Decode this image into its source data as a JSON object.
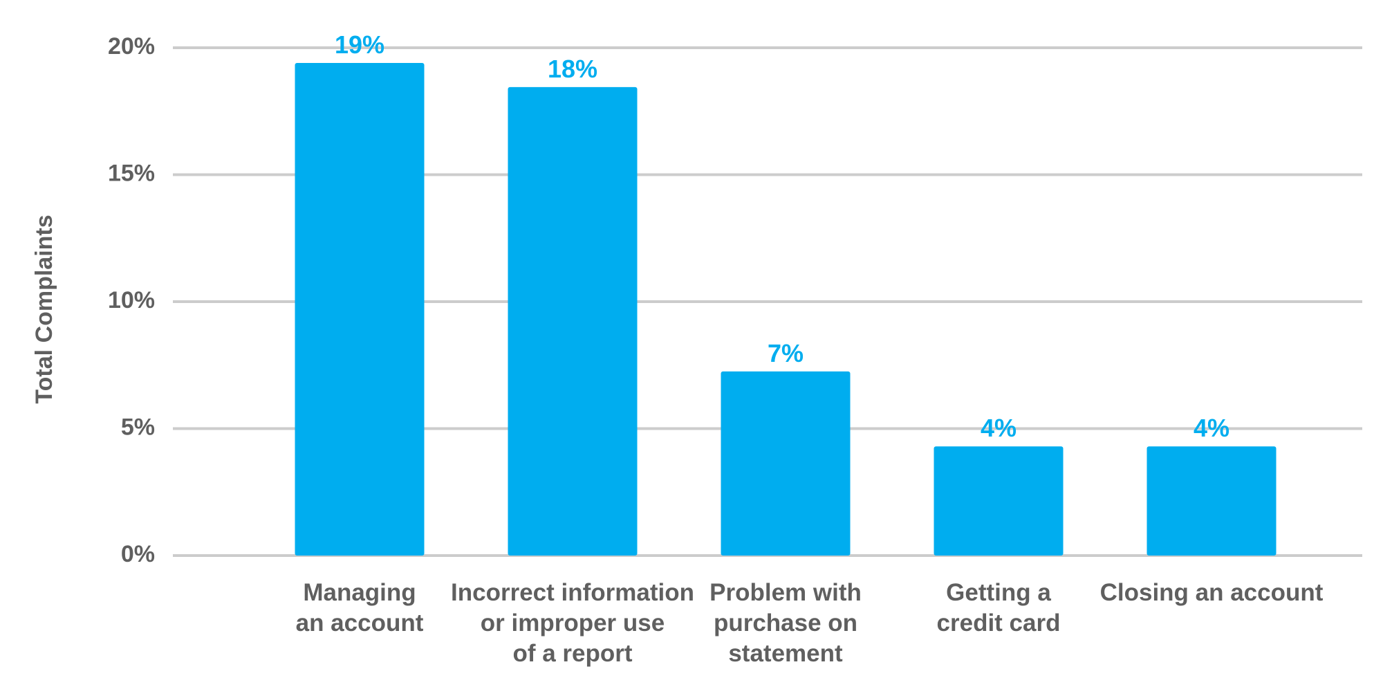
{
  "colors": {
    "bar": "#00adef",
    "data_label": "#00adef",
    "grid": "#cccccc",
    "text": "#5f5f5f"
  },
  "chart_data": {
    "type": "bar",
    "ylabel": "Total Complaints",
    "ylim": [
      0,
      20
    ],
    "yticks": [
      {
        "value": 0,
        "label": "0%"
      },
      {
        "value": 5,
        "label": "5%"
      },
      {
        "value": 10,
        "label": "10%"
      },
      {
        "value": 15,
        "label": "15%"
      },
      {
        "value": 20,
        "label": "20%"
      }
    ],
    "grid": true,
    "categories": [
      [
        "Managing",
        "an account"
      ],
      [
        "Incorrect information",
        "or improper use",
        "of a report"
      ],
      [
        "Problem with",
        "purchase on",
        "statement"
      ],
      [
        "Getting a",
        "credit card"
      ],
      [
        "Closing an account"
      ]
    ],
    "values": [
      19.4,
      18.45,
      7.25,
      4.3,
      4.3
    ],
    "data_labels": [
      "19%",
      "18%",
      "7%",
      "4%",
      "4%"
    ]
  }
}
